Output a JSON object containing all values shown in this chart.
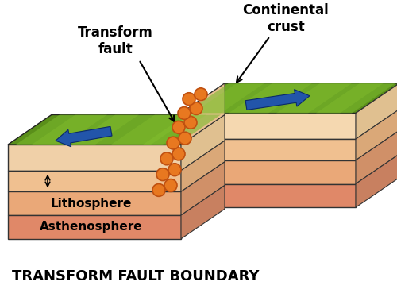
{
  "title": "TRANSFORM FAULT BOUNDARY",
  "label_transform_fault": "Transform\nfault",
  "label_continental_crust": "Continental\ncrust",
  "label_lithosphere": "Lithosphere",
  "label_asthenosphere": "Asthenosphere",
  "bg_color": "#ffffff",
  "dot_color": "#e87820",
  "dot_edge_color": "#c05010",
  "dot_size": 55,
  "arrow_color": "#2255aa",
  "title_fontsize": 13,
  "label_fontsize": 11,
  "annot_fontsize": 12,
  "left_green": "#6b9e2a",
  "right_green": "#6b9e2a",
  "layer1_color": "#f5d5b0",
  "layer2_color": "#f0b898",
  "layer3_color": "#e89080",
  "layer4_color": "#e07868",
  "side_layer1": "#e8c090",
  "side_layer2": "#dda080",
  "side_layer3": "#d08870",
  "side_layer4": "#c87060"
}
